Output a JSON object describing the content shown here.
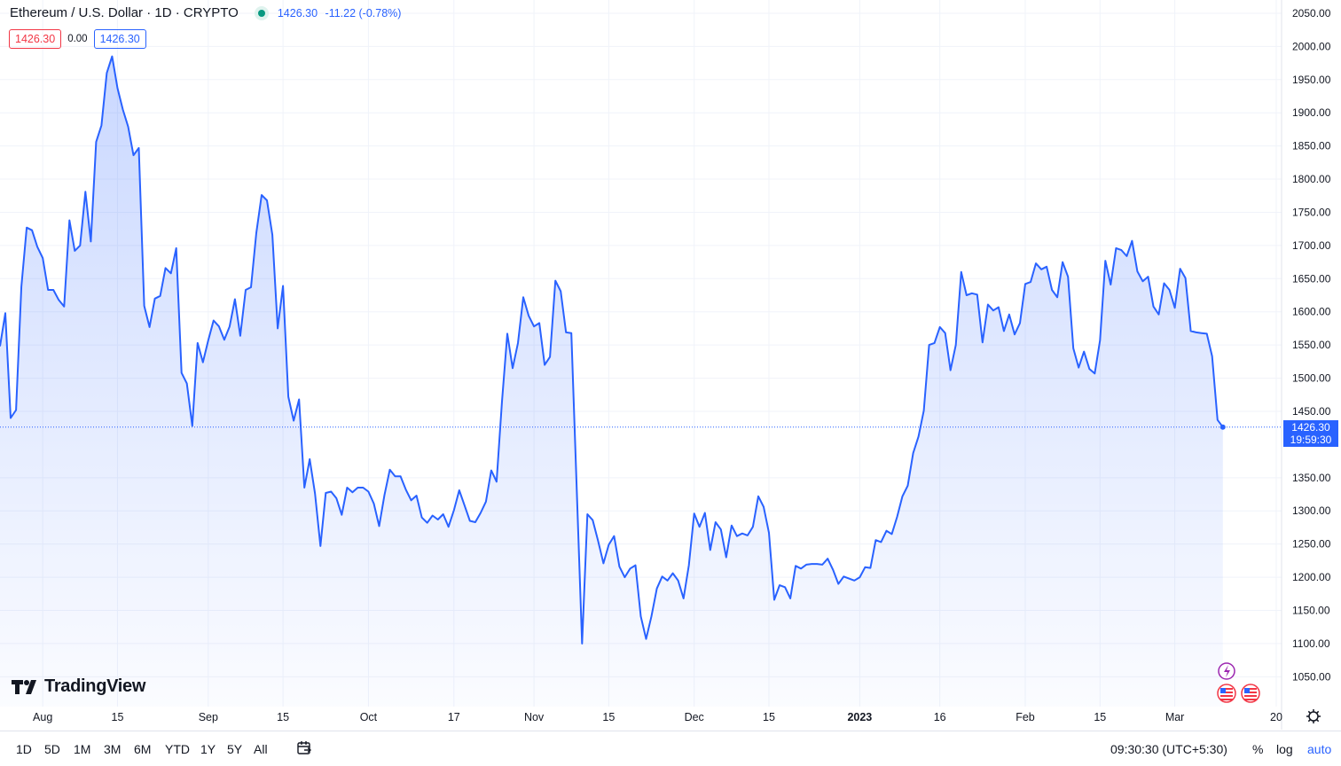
{
  "header": {
    "symbol": "Ethereum / U.S. Dollar · 1D · CRYPTO",
    "last": "1426.30",
    "change": "-11.22 (-0.78%)",
    "bid": "1426.30",
    "spread": "0.00",
    "ask": "1426.30"
  },
  "price_label": {
    "price": "1426.30",
    "countdown": "19:59:30"
  },
  "brand": "TradingView",
  "toolbar": {
    "timeframes": [
      "1D",
      "5D",
      "1M",
      "3M",
      "6M",
      "YTD",
      "1Y",
      "5Y",
      "All"
    ],
    "clock": "09:30:30 (UTC+5:30)",
    "percent": "%",
    "log": "log",
    "auto": "auto"
  },
  "colors": {
    "line": "#2962ff",
    "fill": "#2962ff",
    "grid": "#f0f3fa",
    "axis_text": "#131722",
    "red": "#f23645",
    "green": "#089981"
  },
  "chart_data": {
    "type": "area",
    "symbol": "ETHUSD",
    "x_tick_labels": [
      {
        "label": "Aug",
        "date": "2022-08-01"
      },
      {
        "label": "15",
        "date": "2022-08-15"
      },
      {
        "label": "Sep",
        "date": "2022-09-01"
      },
      {
        "label": "15",
        "date": "2022-09-15"
      },
      {
        "label": "Oct",
        "date": "2022-10-01"
      },
      {
        "label": "17",
        "date": "2022-10-17"
      },
      {
        "label": "Nov",
        "date": "2022-11-01"
      },
      {
        "label": "15",
        "date": "2022-11-15"
      },
      {
        "label": "Dec",
        "date": "2022-12-01"
      },
      {
        "label": "15",
        "date": "2022-12-15"
      },
      {
        "label": "2023",
        "date": "2023-01-01",
        "bold": true
      },
      {
        "label": "16",
        "date": "2023-01-16"
      },
      {
        "label": "Feb",
        "date": "2023-02-01"
      },
      {
        "label": "15",
        "date": "2023-02-15"
      },
      {
        "label": "Mar",
        "date": "2023-03-01"
      },
      {
        "label": "20",
        "date": "2023-03-20"
      }
    ],
    "y_ticks": [
      1050,
      1100,
      1150,
      1200,
      1250,
      1300,
      1350,
      1450,
      1500,
      1550,
      1600,
      1650,
      1700,
      1750,
      1800,
      1850,
      1900,
      1950,
      2000,
      2050
    ],
    "ylim": [
      1005,
      2070
    ],
    "xlim": [
      "2022-07-24",
      "2023-03-21"
    ],
    "last_price": 1426.3,
    "x": [
      "2022-07-24",
      "2022-07-25",
      "2022-07-26",
      "2022-07-27",
      "2022-07-28",
      "2022-07-29",
      "2022-07-30",
      "2022-07-31",
      "2022-08-01",
      "2022-08-02",
      "2022-08-03",
      "2022-08-04",
      "2022-08-05",
      "2022-08-06",
      "2022-08-07",
      "2022-08-08",
      "2022-08-09",
      "2022-08-10",
      "2022-08-11",
      "2022-08-12",
      "2022-08-13",
      "2022-08-14",
      "2022-08-15",
      "2022-08-16",
      "2022-08-17",
      "2022-08-18",
      "2022-08-19",
      "2022-08-20",
      "2022-08-21",
      "2022-08-22",
      "2022-08-23",
      "2022-08-24",
      "2022-08-25",
      "2022-08-26",
      "2022-08-27",
      "2022-08-28",
      "2022-08-29",
      "2022-08-30",
      "2022-08-31",
      "2022-09-01",
      "2022-09-02",
      "2022-09-03",
      "2022-09-04",
      "2022-09-05",
      "2022-09-06",
      "2022-09-07",
      "2022-09-08",
      "2022-09-09",
      "2022-09-10",
      "2022-09-11",
      "2022-09-12",
      "2022-09-13",
      "2022-09-14",
      "2022-09-15",
      "2022-09-16",
      "2022-09-17",
      "2022-09-18",
      "2022-09-19",
      "2022-09-20",
      "2022-09-21",
      "2022-09-22",
      "2022-09-23",
      "2022-09-24",
      "2022-09-25",
      "2022-09-26",
      "2022-09-27",
      "2022-09-28",
      "2022-09-29",
      "2022-09-30",
      "2022-10-01",
      "2022-10-02",
      "2022-10-03",
      "2022-10-04",
      "2022-10-05",
      "2022-10-06",
      "2022-10-07",
      "2022-10-08",
      "2022-10-09",
      "2022-10-10",
      "2022-10-11",
      "2022-10-12",
      "2022-10-13",
      "2022-10-14",
      "2022-10-15",
      "2022-10-16",
      "2022-10-17",
      "2022-10-18",
      "2022-10-19",
      "2022-10-20",
      "2022-10-21",
      "2022-10-22",
      "2022-10-23",
      "2022-10-24",
      "2022-10-25",
      "2022-10-26",
      "2022-10-27",
      "2022-10-28",
      "2022-10-29",
      "2022-10-30",
      "2022-10-31",
      "2022-11-01",
      "2022-11-02",
      "2022-11-03",
      "2022-11-04",
      "2022-11-05",
      "2022-11-06",
      "2022-11-07",
      "2022-11-08",
      "2022-11-09",
      "2022-11-10",
      "2022-11-11",
      "2022-11-12",
      "2022-11-13",
      "2022-11-14",
      "2022-11-15",
      "2022-11-16",
      "2022-11-17",
      "2022-11-18",
      "2022-11-19",
      "2022-11-20",
      "2022-11-21",
      "2022-11-22",
      "2022-11-23",
      "2022-11-24",
      "2022-11-25",
      "2022-11-26",
      "2022-11-27",
      "2022-11-28",
      "2022-11-29",
      "2022-11-30",
      "2022-12-01",
      "2022-12-02",
      "2022-12-03",
      "2022-12-04",
      "2022-12-05",
      "2022-12-06",
      "2022-12-07",
      "2022-12-08",
      "2022-12-09",
      "2022-12-10",
      "2022-12-11",
      "2022-12-12",
      "2022-12-13",
      "2022-12-14",
      "2022-12-15",
      "2022-12-16",
      "2022-12-17",
      "2022-12-18",
      "2022-12-19",
      "2022-12-20",
      "2022-12-21",
      "2022-12-22",
      "2022-12-23",
      "2022-12-24",
      "2022-12-25",
      "2022-12-26",
      "2022-12-27",
      "2022-12-28",
      "2022-12-29",
      "2022-12-30",
      "2022-12-31",
      "2023-01-01",
      "2023-01-02",
      "2023-01-03",
      "2023-01-04",
      "2023-01-05",
      "2023-01-06",
      "2023-01-07",
      "2023-01-08",
      "2023-01-09",
      "2023-01-10",
      "2023-01-11",
      "2023-01-12",
      "2023-01-13",
      "2023-01-14",
      "2023-01-15",
      "2023-01-16",
      "2023-01-17",
      "2023-01-18",
      "2023-01-19",
      "2023-01-20",
      "2023-01-21",
      "2023-01-22",
      "2023-01-23",
      "2023-01-24",
      "2023-01-25",
      "2023-01-26",
      "2023-01-27",
      "2023-01-28",
      "2023-01-29",
      "2023-01-30",
      "2023-01-31",
      "2023-02-01",
      "2023-02-02",
      "2023-02-03",
      "2023-02-04",
      "2023-02-05",
      "2023-02-06",
      "2023-02-07",
      "2023-02-08",
      "2023-02-09",
      "2023-02-10",
      "2023-02-11",
      "2023-02-12",
      "2023-02-13",
      "2023-02-14",
      "2023-02-15",
      "2023-02-16",
      "2023-02-17",
      "2023-02-18",
      "2023-02-19",
      "2023-02-20",
      "2023-02-21",
      "2023-02-22",
      "2023-02-23",
      "2023-02-24",
      "2023-02-25",
      "2023-02-26",
      "2023-02-27",
      "2023-02-28",
      "2023-03-01",
      "2023-03-02",
      "2023-03-03",
      "2023-03-04",
      "2023-03-05",
      "2023-03-06",
      "2023-03-07",
      "2023-03-08",
      "2023-03-09",
      "2023-03-10"
    ],
    "values": [
      1548,
      1598,
      1440,
      1452,
      1638,
      1727,
      1723,
      1698,
      1681,
      1633,
      1633,
      1618,
      1608,
      1738,
      1692,
      1700,
      1781,
      1706,
      1856,
      1881,
      1960,
      1985,
      1937,
      1905,
      1879,
      1836,
      1847,
      1609,
      1577,
      1620,
      1624,
      1666,
      1658,
      1696,
      1508,
      1492,
      1428,
      1553,
      1524,
      1557,
      1587,
      1578,
      1558,
      1578,
      1619,
      1564,
      1633,
      1637,
      1719,
      1776,
      1768,
      1716,
      1575,
      1639,
      1472,
      1436,
      1468,
      1335,
      1378,
      1326,
      1247,
      1327,
      1329,
      1319,
      1294,
      1335,
      1328,
      1335,
      1335,
      1329,
      1311,
      1277,
      1324,
      1362,
      1352,
      1352,
      1332,
      1316,
      1323,
      1290,
      1282,
      1293,
      1287,
      1295,
      1276,
      1301,
      1331,
      1308,
      1285,
      1283,
      1297,
      1314,
      1361,
      1344,
      1465,
      1567,
      1515,
      1553,
      1622,
      1594,
      1578,
      1583,
      1520,
      1532,
      1647,
      1631,
      1569,
      1568,
      1332,
      1100,
      1295,
      1286,
      1255,
      1221,
      1249,
      1262,
      1216,
      1200,
      1213,
      1218,
      1141,
      1107,
      1141,
      1183,
      1201,
      1195,
      1206,
      1195,
      1168,
      1218,
      1296,
      1276,
      1297,
      1241,
      1283,
      1272,
      1230,
      1278,
      1262,
      1266,
      1263,
      1276,
      1322,
      1306,
      1267,
      1166,
      1188,
      1185,
      1168,
      1217,
      1213,
      1219,
      1220,
      1220,
      1219,
      1228,
      1211,
      1190,
      1201,
      1198,
      1195,
      1200,
      1215,
      1214,
      1256,
      1253,
      1270,
      1265,
      1291,
      1322,
      1338,
      1387,
      1412,
      1451,
      1550,
      1553,
      1577,
      1568,
      1512,
      1550,
      1660,
      1625,
      1628,
      1626,
      1554,
      1611,
      1602,
      1607,
      1571,
      1596,
      1566,
      1583,
      1642,
      1645,
      1673,
      1664,
      1668,
      1633,
      1622,
      1675,
      1653,
      1545,
      1516,
      1540,
      1514,
      1507,
      1557,
      1677,
      1641,
      1696,
      1693,
      1684,
      1707,
      1661,
      1646,
      1653,
      1608,
      1596,
      1643,
      1633,
      1606,
      1665,
      1651,
      1571,
      1569,
      1568,
      1567,
      1533,
      1437,
      1426.3
    ]
  }
}
